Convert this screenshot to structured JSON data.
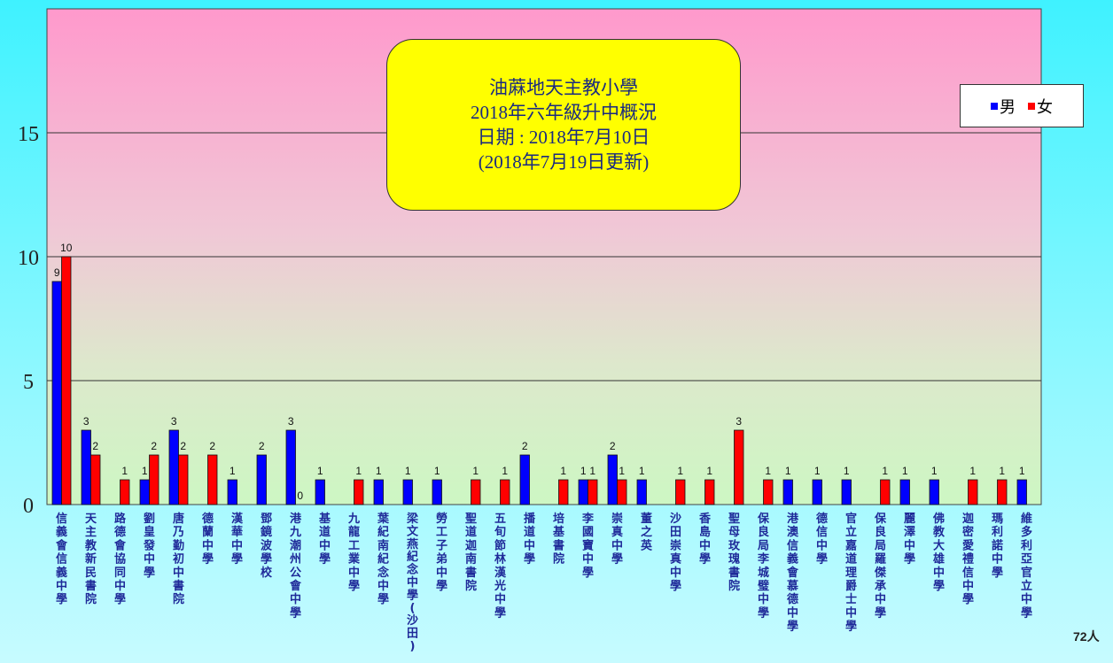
{
  "colors": {
    "male": "#0000ff",
    "female": "#ff0000"
  },
  "title_lines": [
    "油蔴地天主教小學",
    "2018年六年級升中概況",
    "日期 : 2018年7月10日",
    "(2018年7月19日更新)"
  ],
  "legend": {
    "male": "男",
    "female": "女"
  },
  "total_label": "72人",
  "chart_data": {
    "type": "bar",
    "title": "油蔴地天主教小學 2018年六年級升中概況",
    "ylim": [
      0,
      20
    ],
    "yticks": [
      0,
      5,
      10,
      15
    ],
    "grid": true,
    "legend_position": "top-right",
    "categories": [
      "信義會信義中學",
      "天主教新民書院",
      "路德會協同中學",
      "劉皇發中學",
      "唐乃勤初中書院",
      "德蘭中學",
      "漢華中學",
      "鄧鏡波學校",
      "港九潮州公會中學",
      "基道中學",
      "九龍工業中學",
      "葉紀南紀念中學",
      "梁文燕紀念中學(沙田)",
      "勞工子弟中學",
      "聖道迦南書院",
      "五旬節林漢光中學",
      "播道中學",
      "培基書院",
      "李國寶中學",
      "崇真中學",
      "董之英",
      "沙田崇真中學",
      "香島中學",
      "聖母玫瑰書院",
      "保良局李城璧中學",
      "港澳信義會慕德中學",
      "德信中學",
      "官立嘉道理爵士中學",
      "保良局羅傑承中學",
      "麗澤中學",
      "佛教大雄中學",
      "迦密愛禮信中學",
      "瑪利諾中學",
      "維多利亞官立中學"
    ],
    "series": [
      {
        "name": "男",
        "values": [
          9,
          3,
          null,
          1,
          3,
          null,
          1,
          2,
          3,
          1,
          null,
          1,
          1,
          1,
          null,
          null,
          2,
          null,
          1,
          2,
          1,
          null,
          null,
          null,
          null,
          1,
          1,
          1,
          null,
          1,
          1,
          null,
          null,
          1
        ]
      },
      {
        "name": "女",
        "values": [
          10,
          2,
          1,
          2,
          2,
          2,
          null,
          null,
          0,
          null,
          1,
          null,
          null,
          null,
          1,
          1,
          null,
          1,
          1,
          1,
          null,
          1,
          1,
          3,
          1,
          null,
          null,
          null,
          1,
          null,
          null,
          1,
          1,
          null
        ]
      }
    ]
  }
}
